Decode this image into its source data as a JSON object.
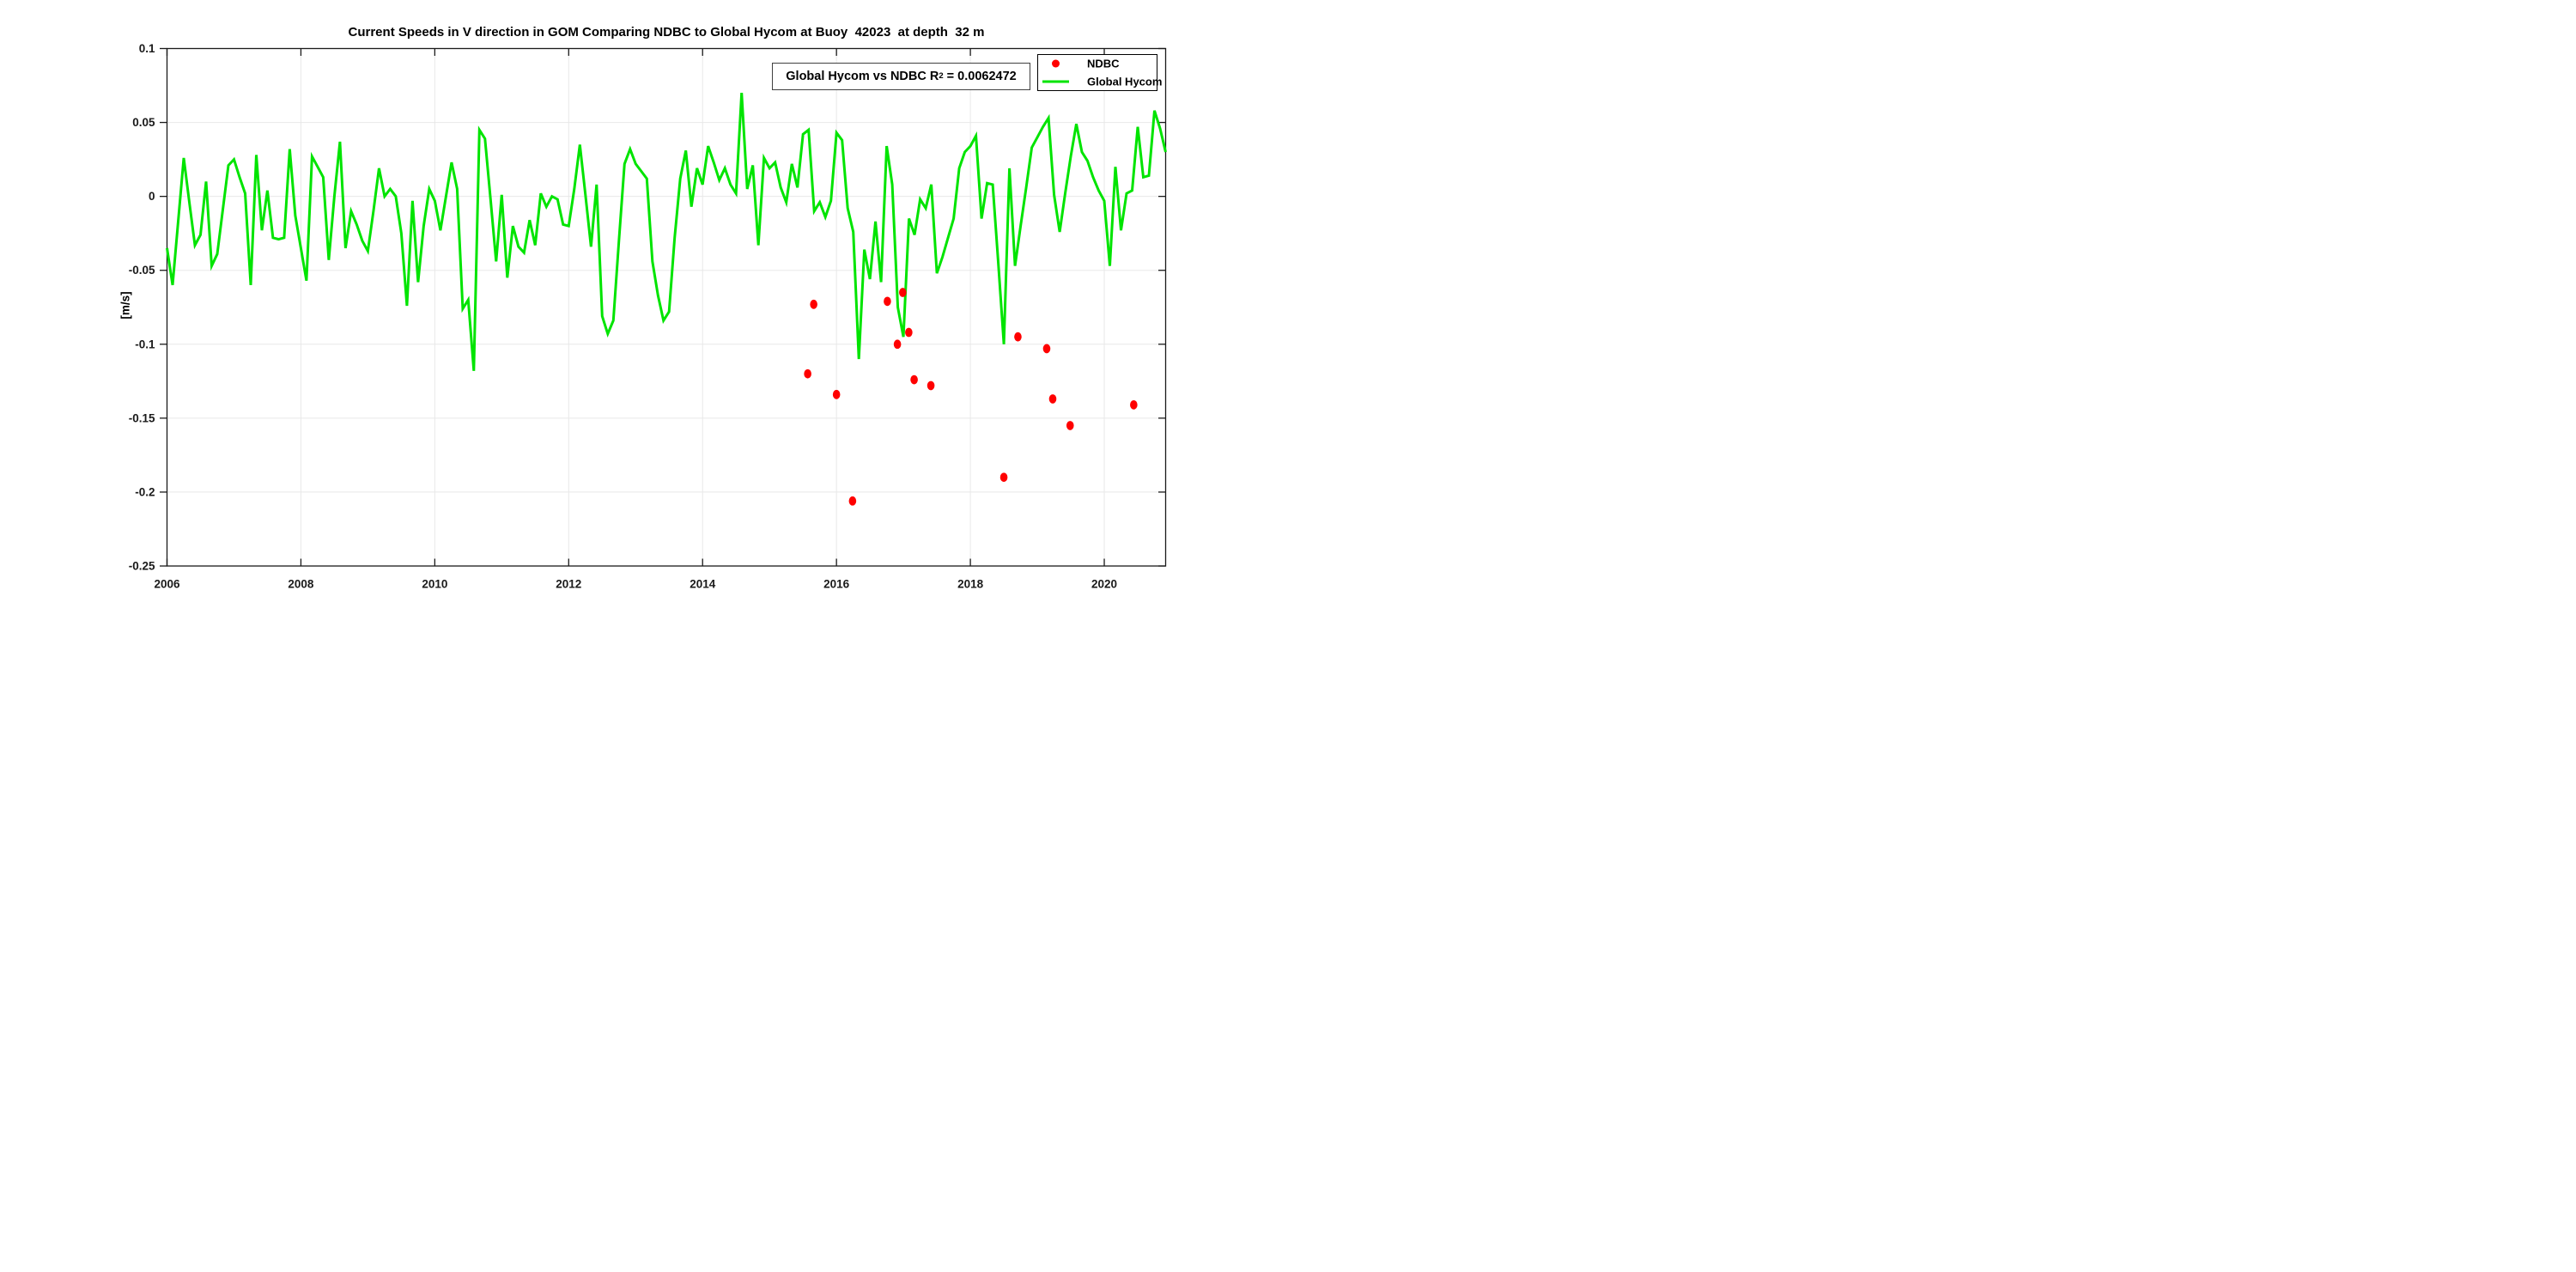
{
  "window": {
    "background": "#ffffff"
  },
  "chart_data": {
    "type": "line+scatter",
    "title": "Current Speeds in V direction in GOM Comparing NDBC to Global Hycom at Buoy  42023  at depth  32 m",
    "ylabel": "[m/s]",
    "xlabel": "",
    "xlim": [
      2006,
      2020.9167
    ],
    "ylim": [
      -0.25,
      0.1
    ],
    "grid": true,
    "xticks": {
      "values": [
        2006,
        2008,
        2010,
        2012,
        2014,
        2016,
        2018,
        2020
      ],
      "labels": [
        "2006",
        "2008",
        "2010",
        "2012",
        "2014",
        "2016",
        "2018",
        "2020"
      ]
    },
    "yticks": {
      "values": [
        0.1,
        0.05,
        0,
        -0.05,
        -0.1,
        -0.15,
        -0.2,
        -0.25
      ],
      "labels": [
        "0.1",
        "0.05",
        "0",
        "-0.05",
        "-0.1",
        "-0.15",
        "-0.2",
        "-0.25"
      ]
    },
    "annotation": {
      "pre": "Global Hycom vs NDBC R",
      "sup": "2",
      "post": " = 0.0062472"
    },
    "legend": {
      "position": "top-right",
      "items": [
        {
          "label": "NDBC",
          "marker": "dot",
          "color": "#ff0000"
        },
        {
          "label": "Global Hycom",
          "marker": "line",
          "color": "#00e400"
        }
      ]
    },
    "series": [
      {
        "name": "Global Hycom",
        "type": "line",
        "color": "#00e400",
        "x_start": 2006.0,
        "x_step": 0.0833333,
        "values": [
          -0.035,
          -0.06,
          -0.017,
          0.026,
          -0.004,
          -0.033,
          -0.026,
          0.01,
          -0.047,
          -0.039,
          -0.009,
          0.021,
          0.025,
          0.013,
          0.002,
          -0.06,
          0.028,
          -0.023,
          0.004,
          -0.028,
          -0.029,
          -0.028,
          0.032,
          -0.013,
          -0.035,
          -0.057,
          0.027,
          0.02,
          0.013,
          -0.043,
          0.0,
          0.037,
          -0.035,
          -0.01,
          -0.019,
          -0.03,
          -0.037,
          -0.01,
          0.019,
          0.0,
          0.005,
          0.0,
          -0.025,
          -0.074,
          -0.003,
          -0.058,
          -0.02,
          0.005,
          -0.003,
          -0.023,
          0.0,
          0.023,
          0.005,
          -0.076,
          -0.07,
          -0.118,
          0.045,
          0.039,
          -0.002,
          -0.044,
          0.001,
          -0.055,
          -0.02,
          -0.034,
          -0.038,
          -0.016,
          -0.033,
          0.002,
          -0.007,
          0.0,
          -0.002,
          -0.019,
          -0.02,
          0.005,
          0.035,
          0.001,
          -0.034,
          0.008,
          -0.081,
          -0.093,
          -0.084,
          -0.03,
          0.022,
          0.032,
          0.022,
          0.017,
          0.012,
          -0.044,
          -0.067,
          -0.084,
          -0.078,
          -0.028,
          0.012,
          0.031,
          -0.007,
          0.019,
          0.008,
          0.034,
          0.023,
          0.011,
          0.019,
          0.008,
          0.002,
          0.07,
          0.005,
          0.021,
          -0.033,
          0.026,
          0.019,
          0.023,
          0.006,
          -0.004,
          0.022,
          0.006,
          0.042,
          0.045,
          -0.01,
          -0.004,
          -0.014,
          -0.003,
          0.043,
          0.038,
          -0.008,
          -0.024,
          -0.11,
          -0.036,
          -0.056,
          -0.017,
          -0.058,
          0.034,
          0.008,
          -0.075,
          -0.095,
          -0.015,
          -0.026,
          -0.002,
          -0.008,
          0.008,
          -0.052,
          -0.041,
          -0.028,
          -0.015,
          0.019,
          0.03,
          0.034,
          0.041,
          -0.015,
          0.009,
          0.008,
          -0.045,
          -0.1,
          0.019,
          -0.047,
          -0.02,
          0.006,
          0.033,
          0.04,
          0.047,
          0.053,
          0.001,
          -0.024,
          0.002,
          0.027,
          0.049,
          0.03,
          0.024,
          0.013,
          0.004,
          -0.003,
          -0.047,
          0.02,
          -0.023,
          0.002,
          0.004,
          0.047,
          0.013,
          0.014,
          0.058,
          0.046,
          0.03
        ]
      },
      {
        "name": "NDBC",
        "type": "scatter",
        "color": "#ff0000",
        "points": [
          [
            2015.57,
            -0.12
          ],
          [
            2015.66,
            -0.073
          ],
          [
            2016.0,
            -0.134
          ],
          [
            2016.24,
            -0.206
          ],
          [
            2016.76,
            -0.071
          ],
          [
            2016.91,
            -0.1
          ],
          [
            2016.99,
            -0.065
          ],
          [
            2017.08,
            -0.092
          ],
          [
            2017.16,
            -0.124
          ],
          [
            2017.41,
            -0.128
          ],
          [
            2018.5,
            -0.19
          ],
          [
            2018.71,
            -0.095
          ],
          [
            2019.14,
            -0.103
          ],
          [
            2019.23,
            -0.137
          ],
          [
            2019.49,
            -0.155
          ],
          [
            2020.44,
            -0.141
          ]
        ]
      }
    ],
    "styles": {
      "grid_color": "#e8e8e8",
      "axis_color": "#1a1a1a",
      "tick_label_color": "#1a1a1a",
      "line_width": 3,
      "marker_rx": 4.3,
      "marker_ry": 5.4
    }
  }
}
